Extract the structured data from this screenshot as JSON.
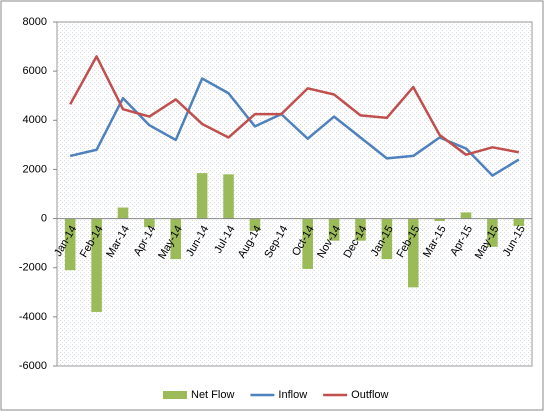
{
  "chart_data": {
    "type": "bar-line",
    "categories": [
      "Jan-14",
      "Feb-14",
      "Mar-14",
      "Apr-14",
      "May-14",
      "Jun-14",
      "Jul-14",
      "Aug-14",
      "Sep-14",
      "Oct-14",
      "Nov-14",
      "Dec-14",
      "Jan-15",
      "Feb-15",
      "Mar-15",
      "Apr-15",
      "May-15",
      "Jun-15"
    ],
    "series": [
      {
        "name": "Net Flow",
        "type": "bar",
        "color": "#9bbb59",
        "values": [
          -2100,
          -3800,
          450,
          -350,
          -1650,
          1850,
          1800,
          -500,
          0,
          -2050,
          -900,
          -900,
          -1650,
          -2800,
          -100,
          250,
          -1150,
          -300
        ]
      },
      {
        "name": "Inflow",
        "type": "line",
        "color": "#4f81bd",
        "values": [
          2550,
          2800,
          4900,
          3800,
          3200,
          5700,
          5100,
          3750,
          4250,
          3250,
          4150,
          3300,
          2450,
          2550,
          3300,
          2850,
          1750,
          2400
        ]
      },
      {
        "name": "Outflow",
        "type": "line",
        "color": "#c0504d",
        "values": [
          4650,
          6600,
          4450,
          4150,
          4850,
          3850,
          3300,
          4250,
          4250,
          5300,
          5050,
          4200,
          4100,
          5350,
          3400,
          2600,
          2900,
          2700
        ]
      }
    ],
    "ylim": [
      -6000,
      8000
    ],
    "yticks": [
      -6000,
      -4000,
      -2000,
      0,
      2000,
      4000,
      6000,
      8000
    ],
    "legend": "bottom"
  }
}
